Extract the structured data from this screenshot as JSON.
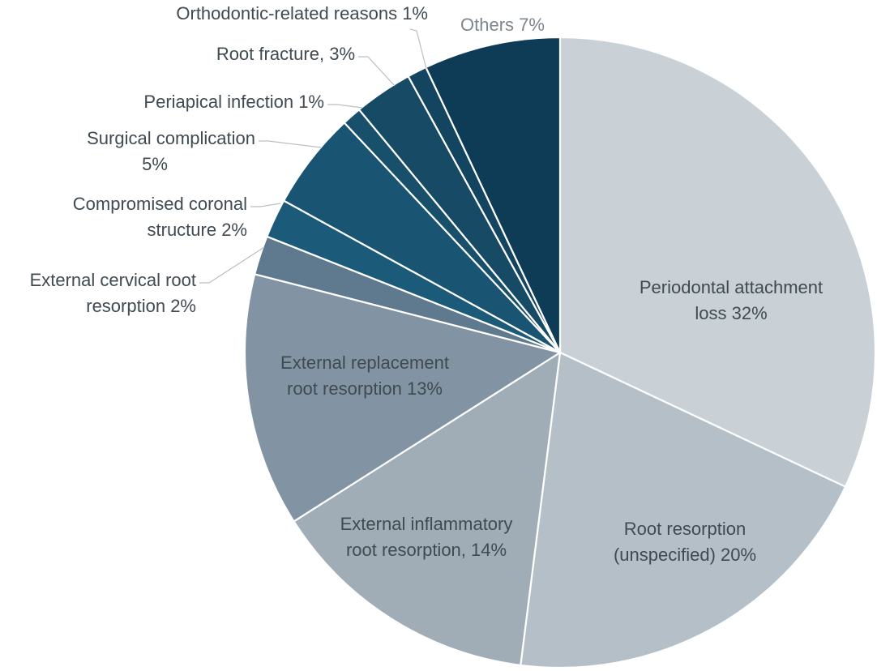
{
  "chart_data": {
    "type": "pie",
    "title": "",
    "start": "top, clockwise",
    "slices": [
      {
        "name": "periodontal-attachment-loss",
        "label": [
          "Periodontal attachment",
          "loss 32%"
        ],
        "value": 32,
        "color": "#c9d1d7",
        "text_color": "#3f4a51"
      },
      {
        "name": "root-resorption-unspecified",
        "label": [
          "Root resorption",
          "(unspecified) 20%"
        ],
        "value": 20,
        "color": "#b4bfc7",
        "text_color": "#3f4a51"
      },
      {
        "name": "external-inflammatory-root-resorption",
        "label": [
          "External inflammatory",
          "root resorption, 14%"
        ],
        "value": 14,
        "color": "#a0acb6",
        "text_color": "#3f4a51"
      },
      {
        "name": "external-replacement-root-resorption",
        "label": [
          "External replacement",
          "root resorption 13%"
        ],
        "value": 13,
        "color": "#8294a3",
        "text_color": "#3f4a51"
      },
      {
        "name": "external-cervical-root-resorption",
        "label": [
          "External cervical root",
          "resorption 2%"
        ],
        "value": 2,
        "color": "#5f7a8e",
        "text_color": "#3f4a51"
      },
      {
        "name": "compromised-coronal-structure",
        "label": [
          "Compromised coronal",
          "structure 2%"
        ],
        "value": 2,
        "color": "#1c5a79",
        "text_color": "#3f4a51"
      },
      {
        "name": "surgical-complication",
        "label": [
          "Surgical complication",
          "5%"
        ],
        "value": 5,
        "color": "#195472",
        "text_color": "#3f4a51"
      },
      {
        "name": "periapical-infection",
        "label": [
          "Periapical infection 1%"
        ],
        "value": 1,
        "color": "#184f6b",
        "text_color": "#3f4a51"
      },
      {
        "name": "root-fracture",
        "label": [
          "Root fracture, 3%"
        ],
        "value": 3,
        "color": "#164a65",
        "text_color": "#3f4a51"
      },
      {
        "name": "orthodontic-related-reasons",
        "label": [
          "Orthodontic-related reasons 1%"
        ],
        "value": 1,
        "color": "#134460",
        "text_color": "#3f4a51"
      },
      {
        "name": "others",
        "label": [
          "Others 7%"
        ],
        "value": 7,
        "color": "#0e3c56",
        "text_color": "#7d868d"
      }
    ]
  }
}
